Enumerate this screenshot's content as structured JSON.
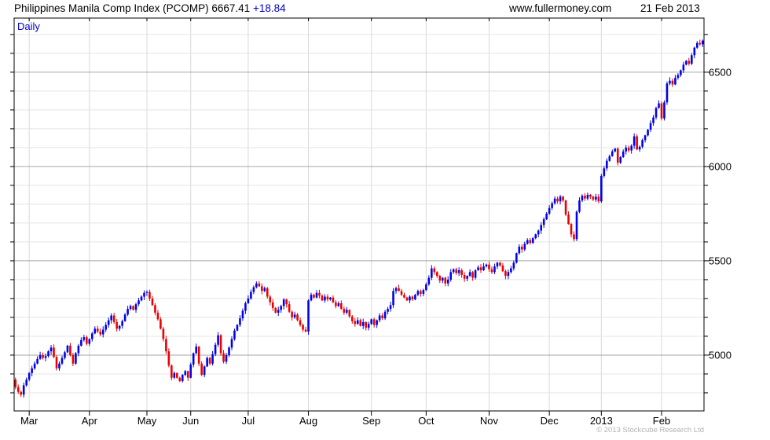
{
  "header": {
    "title": "Philippines Manila Comp Index (PCOMP)",
    "price": "6667.41",
    "change": "+18.84",
    "website": "www.fullermoney.com",
    "date": "21 Feb 2013"
  },
  "chart": {
    "frequency_label": "Daily",
    "copyright": "© 2013 Stockcube Research Ltd"
  },
  "chart_data": {
    "type": "candlestick",
    "title": "Philippines Manila Comp Index (PCOMP)",
    "frequency": "Daily",
    "last_price": 6667.41,
    "change": 18.84,
    "date": "21 Feb 2013",
    "y_axis_side": "right",
    "y_ticks_major": [
      5000,
      5500,
      6000,
      6500
    ],
    "y_minor_step": 100,
    "y_plot_range": [
      4704,
      6787
    ],
    "grid": true,
    "colors": {
      "up": "#0202e8",
      "down": "#e80202",
      "grid_minor": "#e4e4e4",
      "grid_vertical": "#d9d9d9",
      "grid_major": "#a6a6a6",
      "frame": "#000000",
      "axis_text": "#000000"
    },
    "x_ticks": [
      {
        "label": "Mar",
        "i": 5
      },
      {
        "label": "Apr",
        "i": 27
      },
      {
        "label": "May",
        "i": 48
      },
      {
        "label": "Jun",
        "i": 64
      },
      {
        "label": "Jul",
        "i": 85
      },
      {
        "label": "Aug",
        "i": 107
      },
      {
        "label": "Sep",
        "i": 130
      },
      {
        "label": "Oct",
        "i": 150
      },
      {
        "label": "Nov",
        "i": 173
      },
      {
        "label": "Dec",
        "i": 195
      },
      {
        "label": "2013",
        "i": 214
      },
      {
        "label": "Feb",
        "i": 236
      }
    ],
    "first_open": 4870,
    "closes": [
      4830,
      4805,
      4790,
      4840,
      4870,
      4905,
      4930,
      4955,
      4980,
      5000,
      4985,
      4995,
      5020,
      5040,
      4990,
      4930,
      4955,
      4985,
      5015,
      5050,
      5000,
      4955,
      5010,
      5050,
      5080,
      5095,
      5060,
      5085,
      5115,
      5140,
      5125,
      5110,
      5135,
      5160,
      5185,
      5210,
      5175,
      5140,
      5155,
      5180,
      5215,
      5245,
      5260,
      5240,
      5270,
      5290,
      5310,
      5330,
      5335,
      5300,
      5265,
      5225,
      5190,
      5140,
      5085,
      5020,
      4945,
      4880,
      4905,
      4880,
      4862,
      4895,
      4915,
      4880,
      4950,
      5010,
      5045,
      4955,
      4895,
      4940,
      4985,
      4955,
      5005,
      5055,
      5105,
      5010,
      4965,
      5000,
      5040,
      5085,
      5130,
      5160,
      5195,
      5235,
      5275,
      5300,
      5335,
      5360,
      5380,
      5365,
      5340,
      5355,
      5310,
      5280,
      5250,
      5225,
      5240,
      5260,
      5295,
      5270,
      5230,
      5200,
      5215,
      5185,
      5160,
      5135,
      5125,
      5290,
      5320,
      5305,
      5330,
      5315,
      5290,
      5310,
      5295,
      5305,
      5280,
      5260,
      5275,
      5245,
      5225,
      5240,
      5205,
      5180,
      5165,
      5185,
      5155,
      5175,
      5145,
      5165,
      5190,
      5160,
      5185,
      5210,
      5195,
      5230,
      5245,
      5265,
      5340,
      5355,
      5340,
      5320,
      5305,
      5290,
      5310,
      5295,
      5320,
      5340,
      5325,
      5345,
      5375,
      5410,
      5460,
      5440,
      5420,
      5395,
      5410,
      5380,
      5400,
      5440,
      5455,
      5435,
      5450,
      5425,
      5405,
      5420,
      5440,
      5410,
      5450,
      5465,
      5450,
      5470,
      5480,
      5455,
      5440,
      5470,
      5490,
      5475,
      5445,
      5420,
      5440,
      5460,
      5490,
      5540,
      5575,
      5560,
      5590,
      5610,
      5595,
      5620,
      5640,
      5660,
      5690,
      5720,
      5750,
      5780,
      5805,
      5830,
      5815,
      5840,
      5820,
      5745,
      5695,
      5640,
      5615,
      5760,
      5820,
      5845,
      5830,
      5850,
      5840,
      5825,
      5840,
      5815,
      5950,
      5990,
      6030,
      6055,
      6080,
      6095,
      6020,
      6050,
      6080,
      6100,
      6085,
      6110,
      6160,
      6090,
      6105,
      6140,
      6165,
      6195,
      6230,
      6260,
      6310,
      6335,
      6255,
      6340,
      6440,
      6455,
      6435,
      6470,
      6485,
      6510,
      6540,
      6560,
      6545,
      6590,
      6630,
      6655,
      6648,
      6667.41
    ]
  }
}
